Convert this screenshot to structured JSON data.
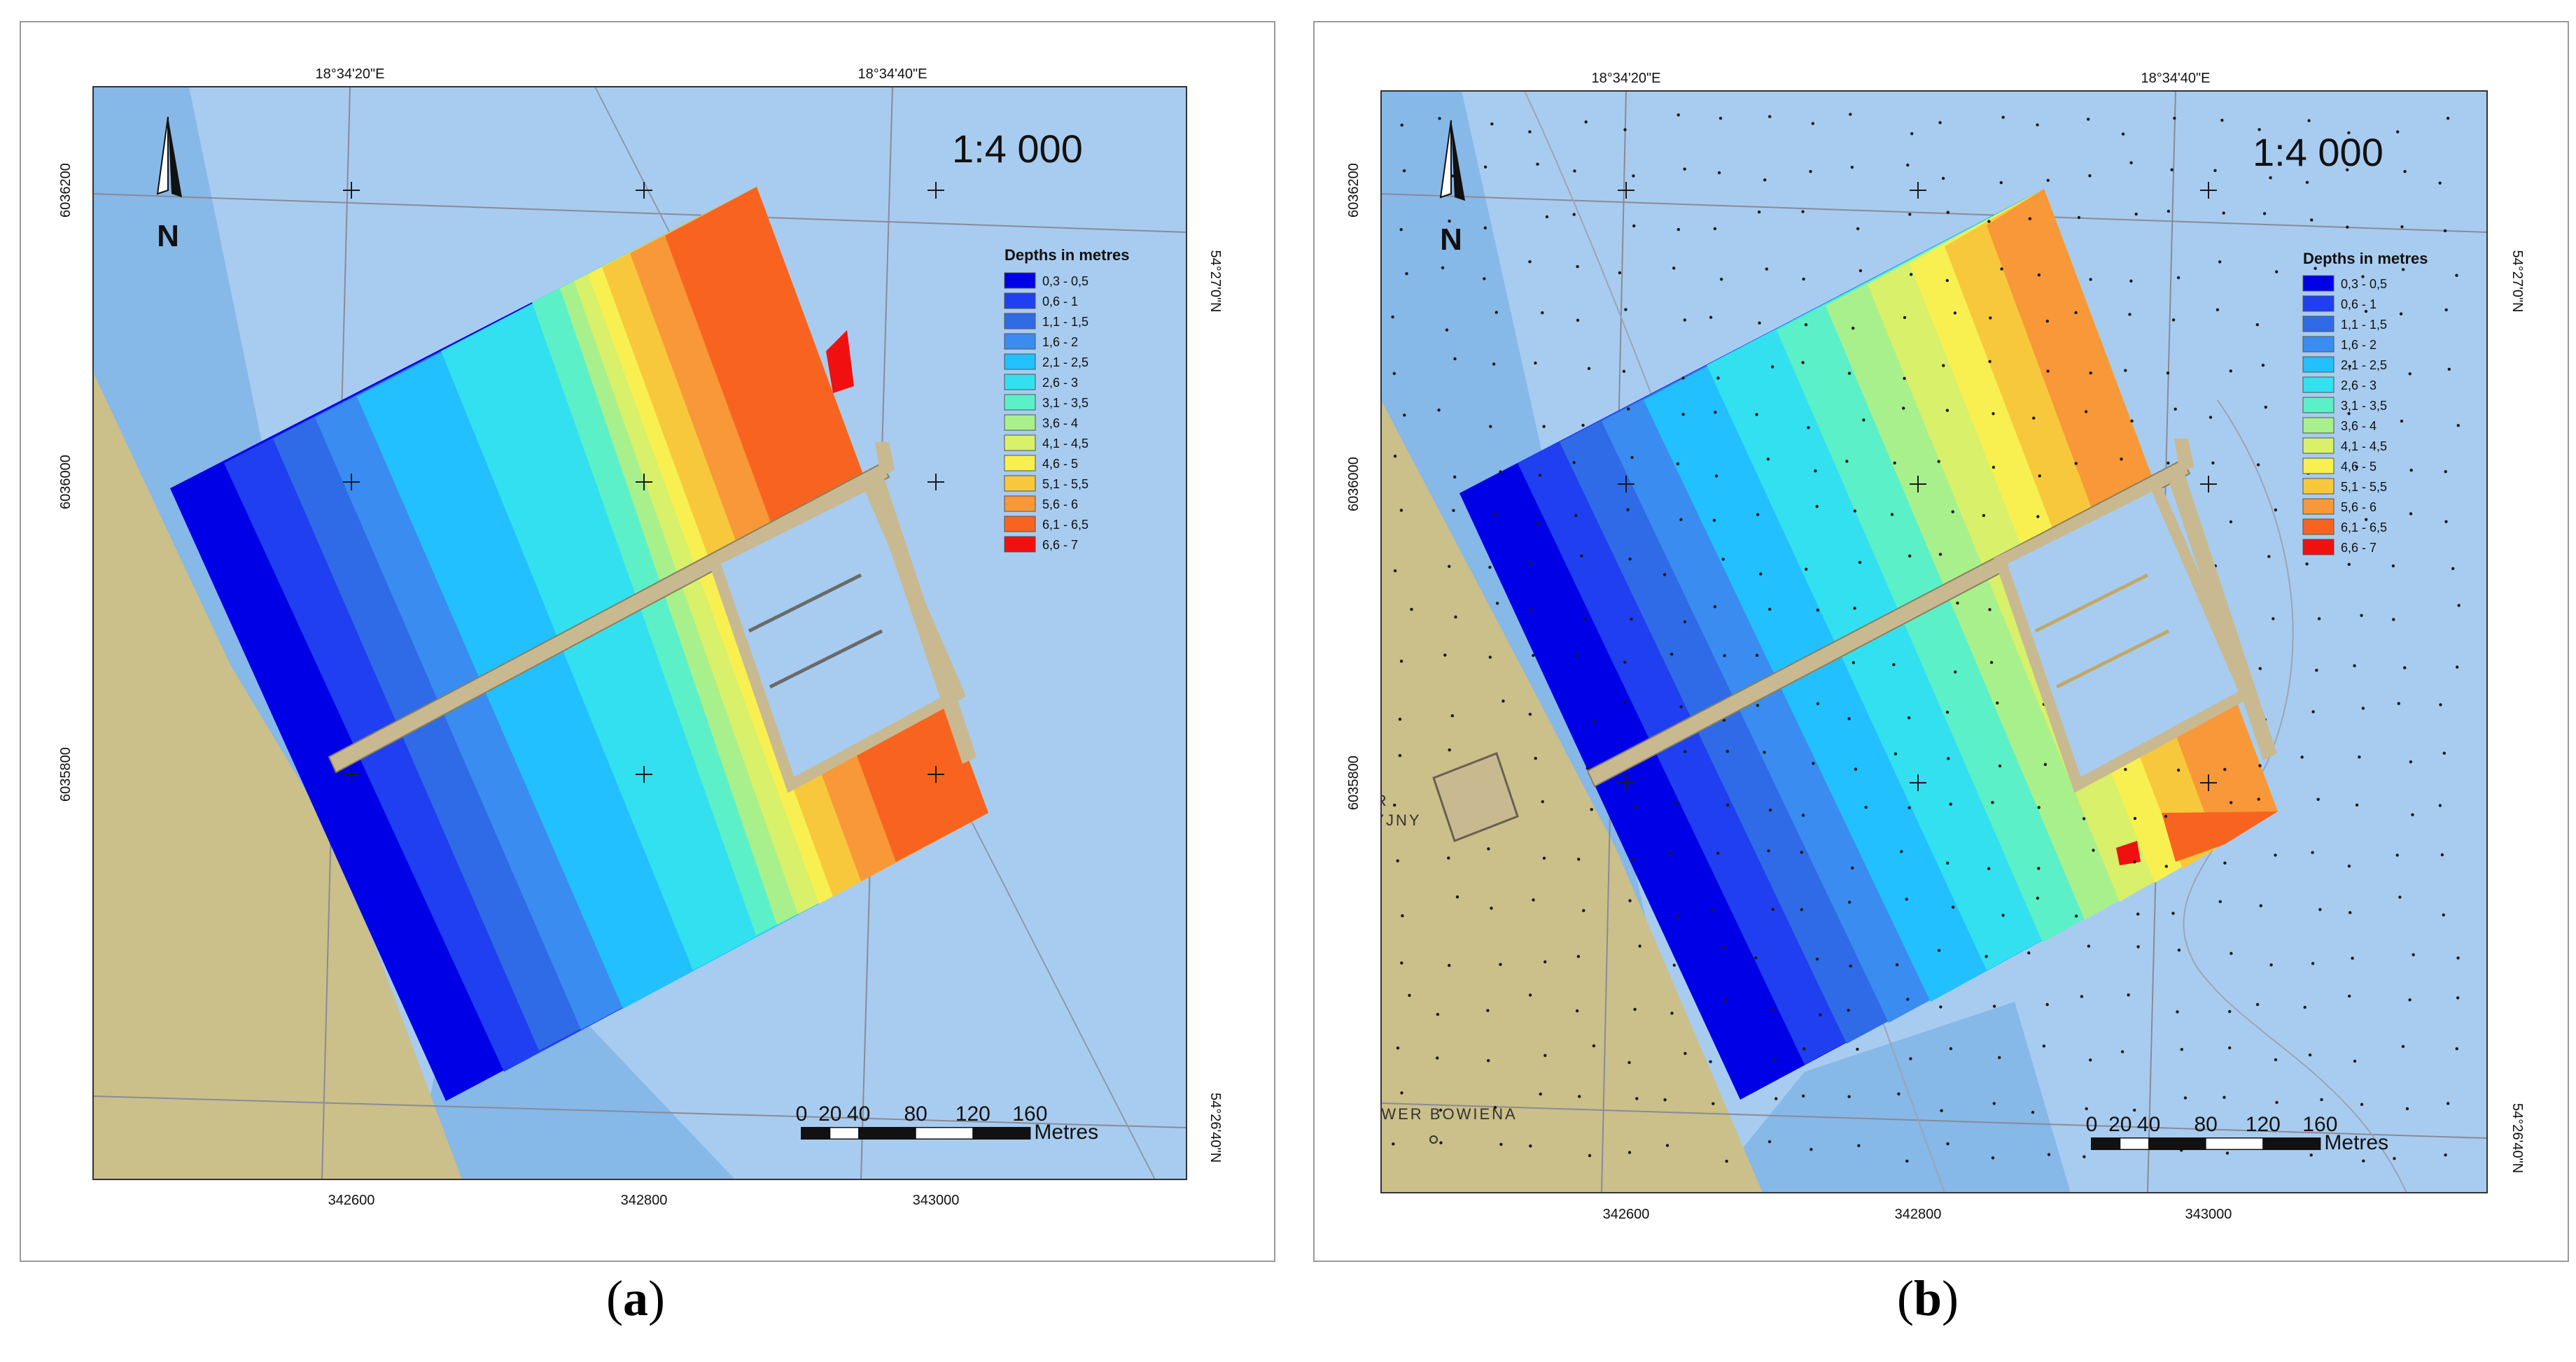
{
  "panels": [
    {
      "id": "a",
      "caption_letter": "a",
      "scale_text": "1:4 000",
      "north_label": "N",
      "legend_title": "Depths in metres",
      "legend_classes": [
        "0,3 - 0,5",
        "0,6 - 1",
        "1,1 - 1,5",
        "1,6 - 2",
        "2,1 - 2,5",
        "2,6 - 3",
        "3,1 - 3,5",
        "3,6 - 4",
        "4,1 - 4,5",
        "4,6 - 5",
        "5,1 - 5,5",
        "5,6 - 6",
        "6,1 - 6,5",
        "6,6 - 7"
      ],
      "lon_labels": [
        "18°34'20\"E",
        "18°34'40\"E"
      ],
      "lat_labels": [
        "54°27'0\"N",
        "54°26'40\"N"
      ],
      "easting_labels": [
        "342600",
        "342800",
        "343000"
      ],
      "northing_labels": [
        "6036200",
        "6036000",
        "6035800"
      ],
      "scalebar_ticks": [
        "0",
        "20",
        "40",
        "80",
        "120",
        "160"
      ],
      "scalebar_unit": "Metres",
      "place_labels": []
    },
    {
      "id": "b",
      "caption_letter": "b",
      "scale_text": "1:4 000",
      "north_label": "N",
      "legend_title": "Depths in metres",
      "legend_classes": [
        "0,3 - 0,5",
        "0,6 - 1",
        "1,1 - 1,5",
        "1,6 - 2",
        "2,1 - 2,5",
        "2,6 - 3",
        "3,1 - 3,5",
        "3,6 - 4",
        "4,1 - 4,5",
        "4,6 - 5",
        "5,1 - 5,5",
        "5,6 - 6",
        "6,1 - 6,5",
        "6,6 - 7"
      ],
      "lon_labels": [
        "18°34'20\"E",
        "18°34'40\"E"
      ],
      "lat_labels": [
        "54°27'0\"N",
        "54°26'40\"N"
      ],
      "easting_labels": [
        "342600",
        "342800",
        "343000"
      ],
      "northing_labels": [
        "6036200",
        "6036000",
        "6035800"
      ],
      "scalebar_ticks": [
        "0",
        "20",
        "40",
        "80",
        "120",
        "160"
      ],
      "scalebar_unit": "Metres",
      "place_labels": [
        "SKWER",
        "URACYJNY",
        "SKWER BOWIENA"
      ]
    }
  ],
  "depth_colors": [
    "#0000e6",
    "#1f3ff0",
    "#2f6be6",
    "#3a8cf0",
    "#22c0ff",
    "#33e0f0",
    "#5cf0c8",
    "#a8f08c",
    "#d8f06a",
    "#f8f050",
    "#f8c83c",
    "#f89838",
    "#f86420",
    "#f01010"
  ],
  "land_color": "#cbbf8a",
  "water_shallow_color": "#86b8e8",
  "water_color": "#a8ccef",
  "pier_color": "#c8b991"
}
